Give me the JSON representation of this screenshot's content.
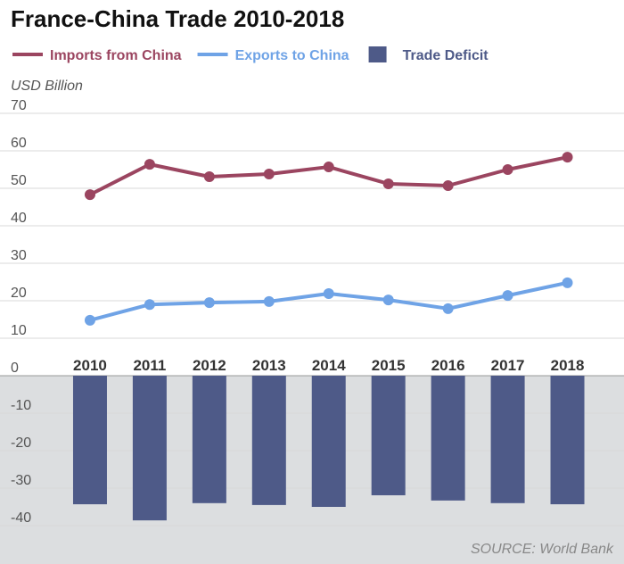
{
  "chart_data": {
    "type": "combo",
    "title": "France-China Trade 2010-2018",
    "y_label": "USD Billion",
    "source": "SOURCE: World Bank",
    "categories": [
      "2010",
      "2011",
      "2012",
      "2013",
      "2014",
      "2015",
      "2016",
      "2017",
      "2018"
    ],
    "series": [
      {
        "name": "Imports from China",
        "type": "line",
        "color": "#9b4560",
        "values": [
          48.3,
          56.4,
          53.1,
          53.8,
          55.7,
          51.2,
          50.7,
          55.0,
          58.3
        ]
      },
      {
        "name": "Exports to China",
        "type": "line",
        "color": "#6fa3e6",
        "values": [
          14.8,
          19.0,
          19.5,
          19.8,
          21.9,
          20.2,
          17.9,
          21.4,
          24.8
        ]
      },
      {
        "name": "Trade Deficit",
        "type": "bar",
        "color": "#4e5a88",
        "values": [
          -34.3,
          -38.6,
          -34.0,
          -34.5,
          -35.0,
          -31.9,
          -33.3,
          -34.0,
          -34.3
        ]
      }
    ],
    "ylim": [
      -50,
      70
    ],
    "yticks": [
      70,
      60,
      50,
      40,
      30,
      20,
      10,
      0,
      -10,
      -20,
      -30,
      -40
    ],
    "grid": true
  }
}
